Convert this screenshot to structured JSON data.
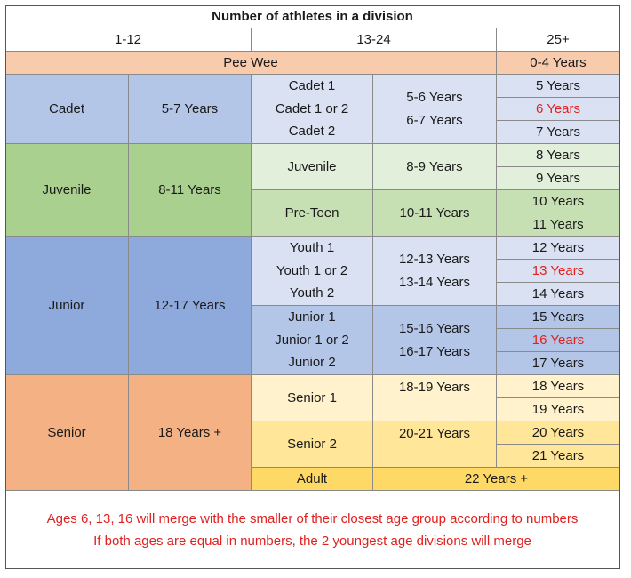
{
  "title": "Number of athletes in a division",
  "headers": [
    "1-12",
    "13-24",
    "25+"
  ],
  "peewee": {
    "label": "Pee Wee",
    "ages": "0-4 Years"
  },
  "cadet": {
    "label": "Cadet",
    "range": "5-7 Years",
    "subs": [
      "Cadet 1",
      "Cadet 1 or 2",
      "Cadet 2"
    ],
    "sub_ranges": [
      "5-6 Years",
      "6-7 Years"
    ],
    "years": [
      "5 Years",
      "6 Years",
      "7 Years"
    ]
  },
  "juvenile": {
    "label": "Juvenile",
    "range": "8-11 Years",
    "sub1": "Juvenile",
    "sub1_range": "8-9 Years",
    "sub2": "Pre-Teen",
    "sub2_range": "10-11 Years",
    "years": [
      "8 Years",
      "9 Years",
      "10 Years",
      "11 Years"
    ]
  },
  "junior": {
    "label": "Junior",
    "range": "12-17 Years",
    "youth": [
      "Youth 1",
      "Youth 1 or 2",
      "Youth 2"
    ],
    "youth_ranges": [
      "12-13 Years",
      "13-14 Years"
    ],
    "junior": [
      "Junior 1",
      "Junior 1 or 2",
      "Junior 2"
    ],
    "junior_ranges": [
      "15-16 Years",
      "16-17 Years"
    ],
    "years": [
      "12 Years",
      "13 Years",
      "14 Years",
      "15 Years",
      "16 Years",
      "17 Years"
    ]
  },
  "senior": {
    "label": "Senior",
    "range": "18 Years +",
    "sub1": "Senior 1",
    "sub1_range": "18-19 Years",
    "sub2": "Senior 2",
    "sub2_range": "20-21 Years",
    "years": [
      "18 Years",
      "19 Years",
      "20 Years",
      "21 Years"
    ]
  },
  "adult": {
    "label": "Adult",
    "range": "22 Years +"
  },
  "notes": [
    "Ages 6, 13, 16 will merge with the smaller of their closest age group according to numbers",
    "If both ages are equal in numbers, the 2 youngest age divisions will merge"
  ],
  "colors": {
    "peewee": "#f8cbad",
    "cadet": "#b4c6e7",
    "cadet_light": "#d9e1f2",
    "juvenile": "#a9d08e",
    "juvenile_light": "#e2efda",
    "juvenile_mid": "#c6e0b4",
    "junior": "#8ea9db",
    "junior_mid": "#b4c6e7",
    "junior_light": "#d9e1f2",
    "senior": "#f4b183",
    "senior_light": "#fff2cc",
    "senior_mid": "#ffe699",
    "adult": "#ffd966",
    "note_red": "#e0211f"
  }
}
